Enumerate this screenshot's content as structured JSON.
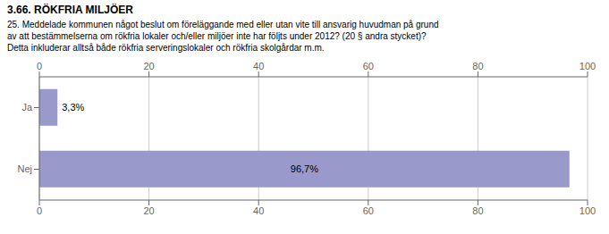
{
  "chart_data": {
    "type": "bar",
    "title": "3.66. RÖKFRIA MILJÖER",
    "subtitle": "25. Meddelade kommunen något beslut om föreläggande med eller utan vite till ansvarig huvudman på grund\nav att bestämmelserna om rökfria lokaler och/eller miljöer inte har följts under 2012? (20 § andra stycket)?\nDetta inkluderar alltså både rökfria serveringslokaler och rökfria skolgårdar m.m.",
    "categories": [
      "Ja",
      "Nej"
    ],
    "values": [
      3.3,
      96.7
    ],
    "value_labels": [
      "3,3%",
      "96,7%"
    ],
    "data_labels": true,
    "color": "#9999cc",
    "orientation": "horizontal",
    "xlim": [
      0,
      100
    ],
    "xticks": [
      0,
      20,
      40,
      60,
      80,
      100
    ],
    "grid": true
  }
}
